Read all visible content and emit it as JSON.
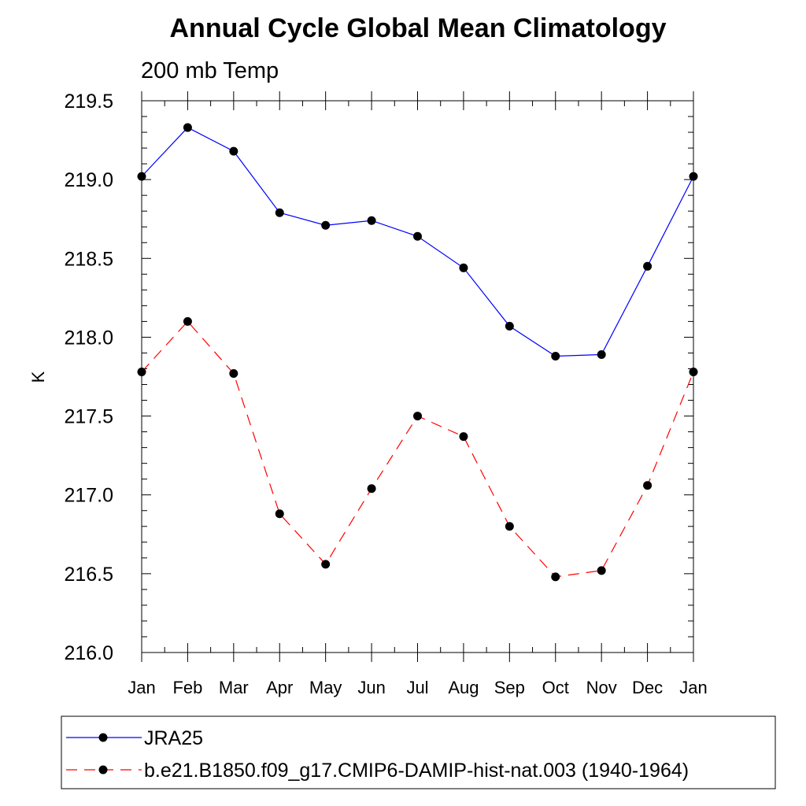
{
  "chart_data": {
    "type": "line",
    "title": "Annual Cycle Global Mean Climatology",
    "subtitle": "200 mb Temp",
    "xlabel": "",
    "ylabel": "K",
    "categories": [
      "Jan",
      "Feb",
      "Mar",
      "Apr",
      "May",
      "Jun",
      "Jul",
      "Aug",
      "Sep",
      "Oct",
      "Nov",
      "Dec",
      "Jan"
    ],
    "ylim": [
      216.0,
      219.5
    ],
    "yticks": [
      "216.0",
      "216.5",
      "217.0",
      "217.5",
      "218.0",
      "218.5",
      "219.0",
      "219.5"
    ],
    "grid": false,
    "legend_position": "bottom",
    "series": [
      {
        "name": "JRA25",
        "color": "#0000ff",
        "line_style": "solid",
        "marker": "filled-circle",
        "values": [
          219.02,
          219.33,
          219.18,
          218.79,
          218.71,
          218.74,
          218.64,
          218.44,
          218.07,
          217.88,
          217.89,
          218.45,
          219.02
        ]
      },
      {
        "name": "b.e21.B1850.f09_g17.CMIP6-DAMIP-hist-nat.003 (1940-1964)",
        "color": "#ff0000",
        "line_style": "dashed",
        "marker": "filled-circle",
        "values": [
          217.78,
          218.1,
          217.77,
          216.88,
          216.56,
          217.04,
          217.5,
          217.37,
          216.8,
          216.48,
          216.52,
          217.06,
          217.78
        ]
      }
    ]
  }
}
